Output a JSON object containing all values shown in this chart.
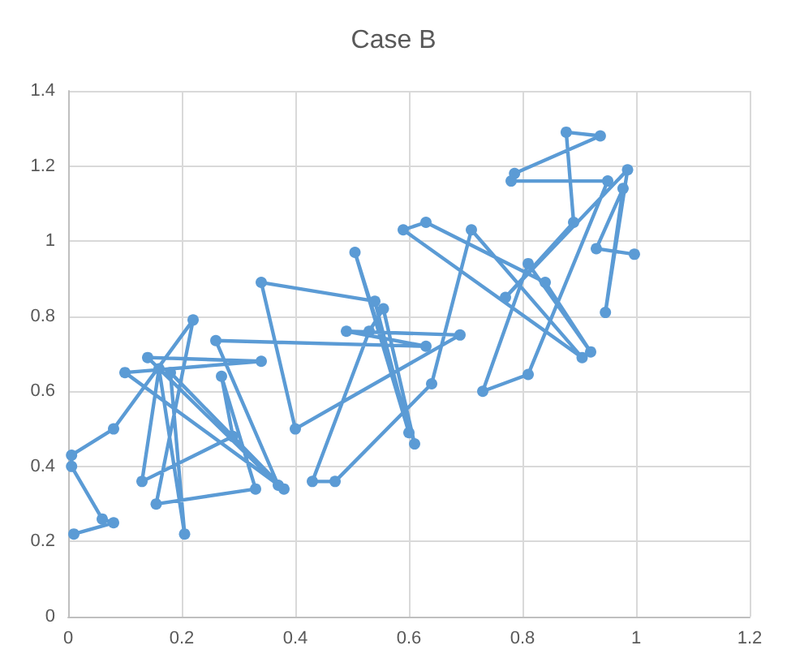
{
  "chart_data": {
    "type": "line",
    "title": "Case B",
    "marker": "circle",
    "line_style": "solid",
    "grid": true,
    "xlim": [
      0,
      1.2
    ],
    "xticks": [
      0,
      0.2,
      0.4,
      0.6,
      0.8,
      1,
      1.2
    ],
    "ylim": [
      0,
      1.4
    ],
    "yticks": [
      0,
      0.2,
      0.4,
      0.6,
      0.8,
      1,
      1.2,
      1.4
    ],
    "series": [
      {
        "color": "#5b9bd5",
        "x": [
          0.01,
          0.08,
          0.06,
          0.006,
          0.006,
          0.08,
          0.22,
          0.155,
          0.33,
          0.27,
          0.29,
          0.13,
          0.16,
          0.205,
          0.18,
          0.38,
          0.1,
          0.34,
          0.14,
          0.37,
          0.26,
          0.63,
          0.49,
          0.69,
          0.4,
          0.34,
          0.54,
          0.6,
          0.505,
          0.61,
          0.555,
          0.53,
          0.43,
          0.47,
          0.64,
          0.71,
          0.905,
          0.59,
          0.63,
          0.84,
          0.92,
          0.81,
          0.73,
          0.81,
          0.95,
          0.78,
          0.786,
          0.937,
          0.877,
          0.89,
          0.77,
          0.985,
          0.946,
          0.977,
          0.93,
          0.997
        ],
        "values": [
          0.22,
          0.25,
          0.26,
          0.4,
          0.43,
          0.5,
          0.79,
          0.3,
          0.34,
          0.64,
          0.48,
          0.36,
          0.66,
          0.22,
          0.65,
          0.34,
          0.65,
          0.68,
          0.69,
          0.35,
          0.735,
          0.72,
          0.76,
          0.75,
          0.5,
          0.89,
          0.84,
          0.49,
          0.97,
          0.46,
          0.82,
          0.76,
          0.36,
          0.36,
          0.62,
          1.03,
          0.69,
          1.03,
          1.05,
          0.89,
          0.705,
          0.94,
          0.6,
          0.645,
          1.16,
          1.16,
          1.18,
          1.28,
          1.29,
          1.05,
          0.85,
          1.19,
          0.81,
          1.14,
          0.98,
          0.965
        ]
      }
    ]
  }
}
